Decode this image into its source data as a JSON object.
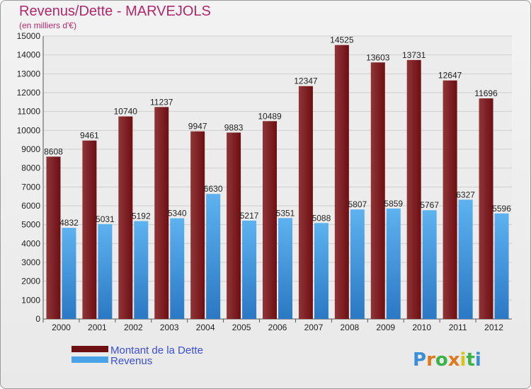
{
  "title": "Revenus/Dette - MARVEJOLS",
  "subtitle": "(en milliers d'€)",
  "watermark": "Proxiti",
  "colors": {
    "debt": "#6e0f12",
    "debt_light": "#8f3538",
    "revenue": "#4aa3e6",
    "revenue_dark": "#2b78c4",
    "title": "#b0286a",
    "legend_text": "#3a4fd6"
  },
  "chart_data": {
    "type": "bar",
    "categories": [
      "2000",
      "2001",
      "2002",
      "2003",
      "2004",
      "2005",
      "2006",
      "2007",
      "2008",
      "2009",
      "2010",
      "2011",
      "2012"
    ],
    "series": [
      {
        "name": "Montant de la Dette",
        "values": [
          8608,
          9461,
          10740,
          11237,
          9947,
          9883,
          10489,
          12347,
          14525,
          13603,
          13731,
          12647,
          11696
        ]
      },
      {
        "name": "Revenus",
        "values": [
          4832,
          5031,
          5192,
          5340,
          6630,
          5217,
          5351,
          5088,
          5807,
          5859,
          5767,
          6327,
          5596
        ]
      }
    ],
    "ylim": [
      0,
      15000
    ],
    "yticks": [
      0,
      1000,
      2000,
      3000,
      4000,
      5000,
      6000,
      7000,
      8000,
      9000,
      10000,
      11000,
      12000,
      13000,
      14000,
      15000
    ],
    "grid": true,
    "legend": "bottom-left"
  }
}
